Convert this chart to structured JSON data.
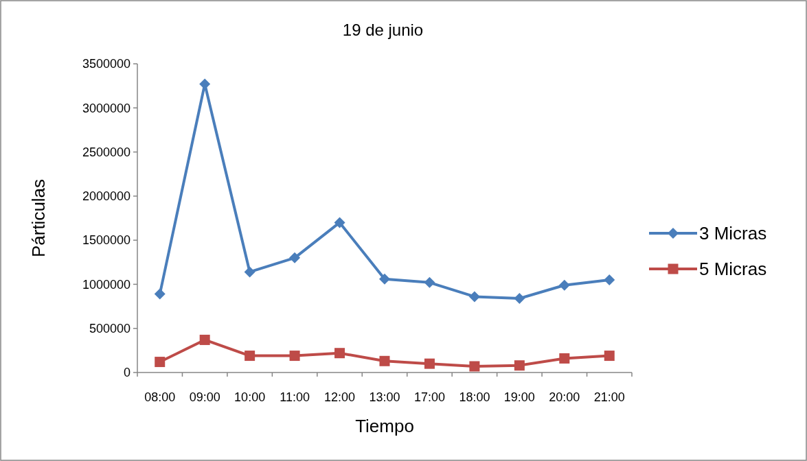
{
  "chart_data": {
    "type": "line",
    "title": "19 de  junio",
    "xlabel": "Tiempo",
    "ylabel": "Párticulas",
    "categories": [
      "08:00",
      "09:00",
      "10:00",
      "11:00",
      "12:00",
      "13:00",
      "17:00",
      "18:00",
      "19:00",
      "20:00",
      "21:00"
    ],
    "series": [
      {
        "name": "3 Micras",
        "color": "#4a7ebb",
        "marker": "diamond",
        "values": [
          890000,
          3270000,
          1140000,
          1300000,
          1700000,
          1060000,
          1020000,
          860000,
          840000,
          990000,
          1050000
        ]
      },
      {
        "name": "5 Micras",
        "color": "#be4b48",
        "marker": "square",
        "values": [
          120000,
          370000,
          190000,
          190000,
          220000,
          130000,
          100000,
          70000,
          80000,
          160000,
          190000
        ]
      }
    ],
    "ylim": [
      0,
      3500000
    ],
    "yticks": [
      0,
      500000,
      1000000,
      1500000,
      2000000,
      2500000,
      3000000,
      3500000
    ],
    "grid": false,
    "legend": "right",
    "line_style": "solid"
  }
}
